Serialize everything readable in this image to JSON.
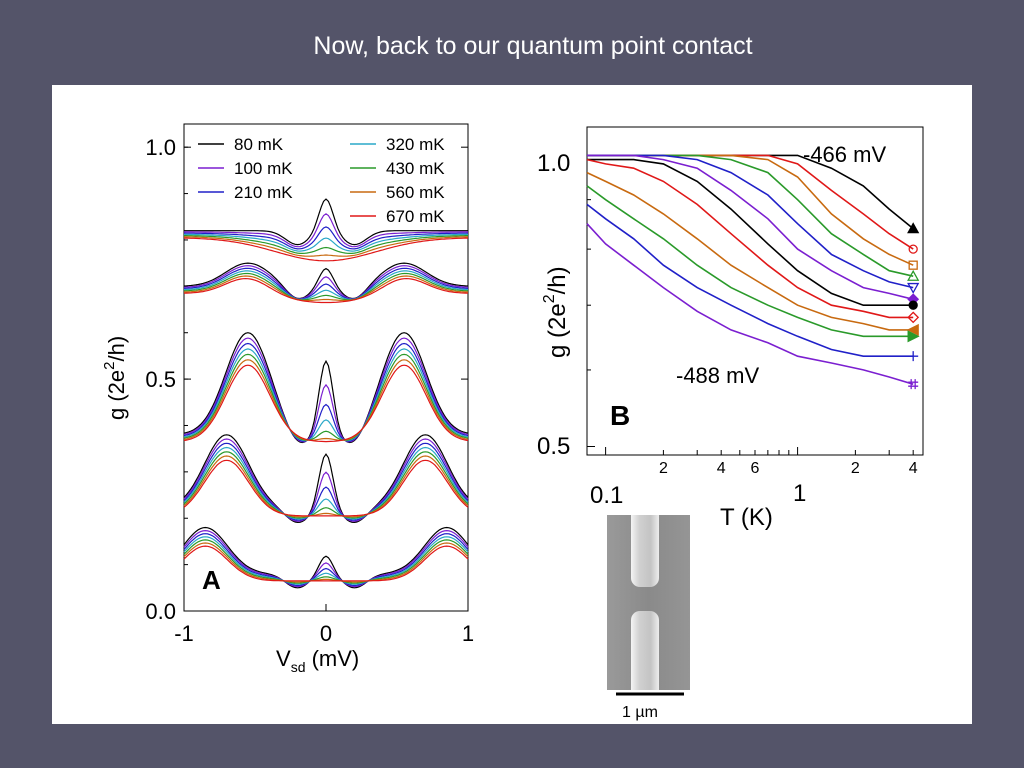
{
  "slide": {
    "title": "Now, back to our quantum point contact"
  },
  "colors": {
    "background": "#545469",
    "panel": "#ffffff",
    "series": [
      "#000000",
      "#7b1fd0",
      "#2020c8",
      "#2aa8c8",
      "#2a9a2a",
      "#c86a10",
      "#e01818"
    ]
  },
  "scale_bar": {
    "label": "1 µm"
  },
  "chart_data": [
    {
      "type": "line",
      "panel_label": "A",
      "title": "",
      "xlabel": "V",
      "xlabel_sub": "sd",
      "xlabel_unit": " (mV)",
      "ylabel": "g (2e",
      "ylabel_sup": "2",
      "ylabel_tail": "/h)",
      "xlim": [
        -1,
        1
      ],
      "ylim": [
        0,
        1.05
      ],
      "x_ticks": [
        -1,
        0,
        1
      ],
      "x_tick_labels": [
        "-1",
        "0",
        "1"
      ],
      "y_ticks": [
        0,
        0.5,
        1.0
      ],
      "y_tick_labels": [
        "0.0",
        "0.5",
        "1.0"
      ],
      "legend_position": "top",
      "legend": [
        "80 mK",
        "100 mK",
        "210 mK",
        "320 mK",
        "430 mK",
        "560 mK",
        "670 mK"
      ],
      "curves": [
        {
          "base": 0.82,
          "bump_x": 0.85,
          "bump_h": 0.0,
          "zbp": 0.07,
          "dip": 0.05
        },
        {
          "base": 0.7,
          "bump_x": 0.55,
          "bump_h": 0.05,
          "zbp": 0.04,
          "dip": 0.02
        },
        {
          "base": 0.38,
          "bump_x": 0.55,
          "bump_h": 0.22,
          "zbp": 0.16,
          "dip": 0.0
        },
        {
          "base": 0.22,
          "bump_x": 0.7,
          "bump_h": 0.16,
          "zbp": 0.12,
          "dip": 0.0
        },
        {
          "base": 0.08,
          "bump_x": 0.85,
          "bump_h": 0.1,
          "zbp": 0.04,
          "dip": 0.0
        }
      ]
    },
    {
      "type": "line",
      "panel_label": "B",
      "title": "",
      "xlabel": "T (K)",
      "ylabel": "g (2e",
      "ylabel_sup": "2",
      "ylabel_tail": "/h)",
      "xscale": "log",
      "yscale": "log",
      "xlim": [
        0.08,
        4.5
      ],
      "ylim": [
        0.49,
        1.07
      ],
      "x_tick_labels_minor": [
        "2",
        "4",
        "6",
        "2",
        "4"
      ],
      "x_decade_labels": [
        "0.1",
        "1"
      ],
      "y_tick_labels": [
        "0.5",
        "1.0"
      ],
      "annotations": [
        "-466 mV",
        "-488 mV"
      ],
      "x": [
        0.08,
        0.1,
        0.14,
        0.2,
        0.3,
        0.45,
        0.7,
        1.0,
        1.5,
        2.2,
        3.0,
        4.0
      ],
      "series": [
        {
          "color": "#000000",
          "marker": "filled-triangle",
          "values": [
            1.0,
            1.0,
            1.0,
            1.0,
            1.0,
            1.0,
            1.0,
            1.0,
            0.97,
            0.93,
            0.88,
            0.84
          ]
        },
        {
          "color": "#e01818",
          "marker": "circle",
          "values": [
            1.0,
            1.0,
            1.0,
            1.0,
            1.0,
            1.0,
            1.0,
            0.98,
            0.92,
            0.87,
            0.83,
            0.8
          ]
        },
        {
          "color": "#c86a10",
          "marker": "square",
          "values": [
            1.0,
            1.0,
            1.0,
            1.0,
            1.0,
            1.0,
            0.99,
            0.95,
            0.87,
            0.82,
            0.79,
            0.77
          ]
        },
        {
          "color": "#2a9a2a",
          "marker": "triangle",
          "values": [
            1.0,
            1.0,
            1.0,
            1.0,
            1.0,
            0.99,
            0.96,
            0.9,
            0.83,
            0.79,
            0.76,
            0.75
          ]
        },
        {
          "color": "#2020c8",
          "marker": "down-triangle",
          "values": [
            1.0,
            1.0,
            1.0,
            1.0,
            0.99,
            0.96,
            0.91,
            0.85,
            0.79,
            0.76,
            0.74,
            0.73
          ]
        },
        {
          "color": "#7b1fd0",
          "marker": "filled-diamond",
          "values": [
            1.0,
            1.0,
            1.0,
            0.99,
            0.97,
            0.92,
            0.86,
            0.8,
            0.76,
            0.73,
            0.72,
            0.71
          ]
        },
        {
          "color": "#000000",
          "marker": "filled-circle",
          "values": [
            0.99,
            0.99,
            0.99,
            0.98,
            0.94,
            0.88,
            0.81,
            0.76,
            0.72,
            0.7,
            0.7,
            0.7
          ]
        },
        {
          "color": "#e01818",
          "marker": "diamond",
          "values": [
            0.99,
            0.98,
            0.97,
            0.94,
            0.89,
            0.83,
            0.77,
            0.73,
            0.7,
            0.69,
            0.68,
            0.68
          ]
        },
        {
          "color": "#c86a10",
          "marker": "left-triangle",
          "values": [
            0.96,
            0.94,
            0.91,
            0.87,
            0.82,
            0.77,
            0.73,
            0.7,
            0.68,
            0.67,
            0.66,
            0.66
          ]
        },
        {
          "color": "#2a9a2a",
          "marker": "right-triangle",
          "values": [
            0.93,
            0.9,
            0.86,
            0.82,
            0.77,
            0.73,
            0.7,
            0.68,
            0.66,
            0.65,
            0.65,
            0.65
          ]
        },
        {
          "color": "#2020c8",
          "marker": "plus",
          "values": [
            0.89,
            0.86,
            0.82,
            0.77,
            0.73,
            0.7,
            0.67,
            0.65,
            0.63,
            0.62,
            0.62,
            0.62
          ]
        },
        {
          "color": "#7b1fd0",
          "marker": "hash",
          "values": [
            0.85,
            0.81,
            0.77,
            0.73,
            0.69,
            0.66,
            0.64,
            0.62,
            0.61,
            0.6,
            0.59,
            0.58
          ]
        }
      ]
    }
  ]
}
